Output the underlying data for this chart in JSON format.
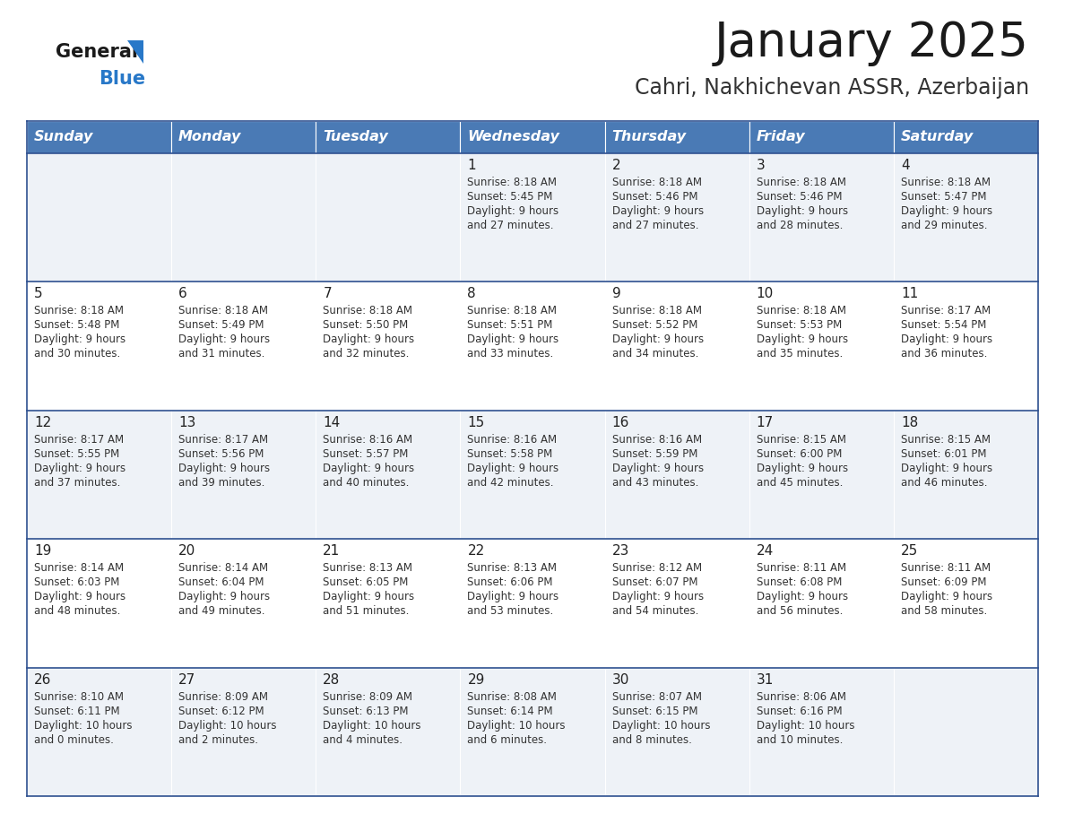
{
  "title": "January 2025",
  "subtitle": "Cahri, Nakhichevan ASSR, Azerbaijan",
  "header_bg": "#4a7ab5",
  "header_text_color": "#ffffff",
  "cell_bg_even": "#eef2f7",
  "cell_bg_odd": "#ffffff",
  "border_color": "#2e5090",
  "text_color": "#333333",
  "days_of_week": [
    "Sunday",
    "Monday",
    "Tuesday",
    "Wednesday",
    "Thursday",
    "Friday",
    "Saturday"
  ],
  "calendar": [
    [
      {
        "day": "",
        "sunrise": "",
        "sunset": "",
        "daylight": ""
      },
      {
        "day": "",
        "sunrise": "",
        "sunset": "",
        "daylight": ""
      },
      {
        "day": "",
        "sunrise": "",
        "sunset": "",
        "daylight": ""
      },
      {
        "day": "1",
        "sunrise": "8:18 AM",
        "sunset": "5:45 PM",
        "daylight": "9 hours\nand 27 minutes."
      },
      {
        "day": "2",
        "sunrise": "8:18 AM",
        "sunset": "5:46 PM",
        "daylight": "9 hours\nand 27 minutes."
      },
      {
        "day": "3",
        "sunrise": "8:18 AM",
        "sunset": "5:46 PM",
        "daylight": "9 hours\nand 28 minutes."
      },
      {
        "day": "4",
        "sunrise": "8:18 AM",
        "sunset": "5:47 PM",
        "daylight": "9 hours\nand 29 minutes."
      }
    ],
    [
      {
        "day": "5",
        "sunrise": "8:18 AM",
        "sunset": "5:48 PM",
        "daylight": "9 hours\nand 30 minutes."
      },
      {
        "day": "6",
        "sunrise": "8:18 AM",
        "sunset": "5:49 PM",
        "daylight": "9 hours\nand 31 minutes."
      },
      {
        "day": "7",
        "sunrise": "8:18 AM",
        "sunset": "5:50 PM",
        "daylight": "9 hours\nand 32 minutes."
      },
      {
        "day": "8",
        "sunrise": "8:18 AM",
        "sunset": "5:51 PM",
        "daylight": "9 hours\nand 33 minutes."
      },
      {
        "day": "9",
        "sunrise": "8:18 AM",
        "sunset": "5:52 PM",
        "daylight": "9 hours\nand 34 minutes."
      },
      {
        "day": "10",
        "sunrise": "8:18 AM",
        "sunset": "5:53 PM",
        "daylight": "9 hours\nand 35 minutes."
      },
      {
        "day": "11",
        "sunrise": "8:17 AM",
        "sunset": "5:54 PM",
        "daylight": "9 hours\nand 36 minutes."
      }
    ],
    [
      {
        "day": "12",
        "sunrise": "8:17 AM",
        "sunset": "5:55 PM",
        "daylight": "9 hours\nand 37 minutes."
      },
      {
        "day": "13",
        "sunrise": "8:17 AM",
        "sunset": "5:56 PM",
        "daylight": "9 hours\nand 39 minutes."
      },
      {
        "day": "14",
        "sunrise": "8:16 AM",
        "sunset": "5:57 PM",
        "daylight": "9 hours\nand 40 minutes."
      },
      {
        "day": "15",
        "sunrise": "8:16 AM",
        "sunset": "5:58 PM",
        "daylight": "9 hours\nand 42 minutes."
      },
      {
        "day": "16",
        "sunrise": "8:16 AM",
        "sunset": "5:59 PM",
        "daylight": "9 hours\nand 43 minutes."
      },
      {
        "day": "17",
        "sunrise": "8:15 AM",
        "sunset": "6:00 PM",
        "daylight": "9 hours\nand 45 minutes."
      },
      {
        "day": "18",
        "sunrise": "8:15 AM",
        "sunset": "6:01 PM",
        "daylight": "9 hours\nand 46 minutes."
      }
    ],
    [
      {
        "day": "19",
        "sunrise": "8:14 AM",
        "sunset": "6:03 PM",
        "daylight": "9 hours\nand 48 minutes."
      },
      {
        "day": "20",
        "sunrise": "8:14 AM",
        "sunset": "6:04 PM",
        "daylight": "9 hours\nand 49 minutes."
      },
      {
        "day": "21",
        "sunrise": "8:13 AM",
        "sunset": "6:05 PM",
        "daylight": "9 hours\nand 51 minutes."
      },
      {
        "day": "22",
        "sunrise": "8:13 AM",
        "sunset": "6:06 PM",
        "daylight": "9 hours\nand 53 minutes."
      },
      {
        "day": "23",
        "sunrise": "8:12 AM",
        "sunset": "6:07 PM",
        "daylight": "9 hours\nand 54 minutes."
      },
      {
        "day": "24",
        "sunrise": "8:11 AM",
        "sunset": "6:08 PM",
        "daylight": "9 hours\nand 56 minutes."
      },
      {
        "day": "25",
        "sunrise": "8:11 AM",
        "sunset": "6:09 PM",
        "daylight": "9 hours\nand 58 minutes."
      }
    ],
    [
      {
        "day": "26",
        "sunrise": "8:10 AM",
        "sunset": "6:11 PM",
        "daylight": "10 hours\nand 0 minutes."
      },
      {
        "day": "27",
        "sunrise": "8:09 AM",
        "sunset": "6:12 PM",
        "daylight": "10 hours\nand 2 minutes."
      },
      {
        "day": "28",
        "sunrise": "8:09 AM",
        "sunset": "6:13 PM",
        "daylight": "10 hours\nand 4 minutes."
      },
      {
        "day": "29",
        "sunrise": "8:08 AM",
        "sunset": "6:14 PM",
        "daylight": "10 hours\nand 6 minutes."
      },
      {
        "day": "30",
        "sunrise": "8:07 AM",
        "sunset": "6:15 PM",
        "daylight": "10 hours\nand 8 minutes."
      },
      {
        "day": "31",
        "sunrise": "8:06 AM",
        "sunset": "6:16 PM",
        "daylight": "10 hours\nand 10 minutes."
      },
      {
        "day": "",
        "sunrise": "",
        "sunset": "",
        "daylight": ""
      }
    ]
  ]
}
